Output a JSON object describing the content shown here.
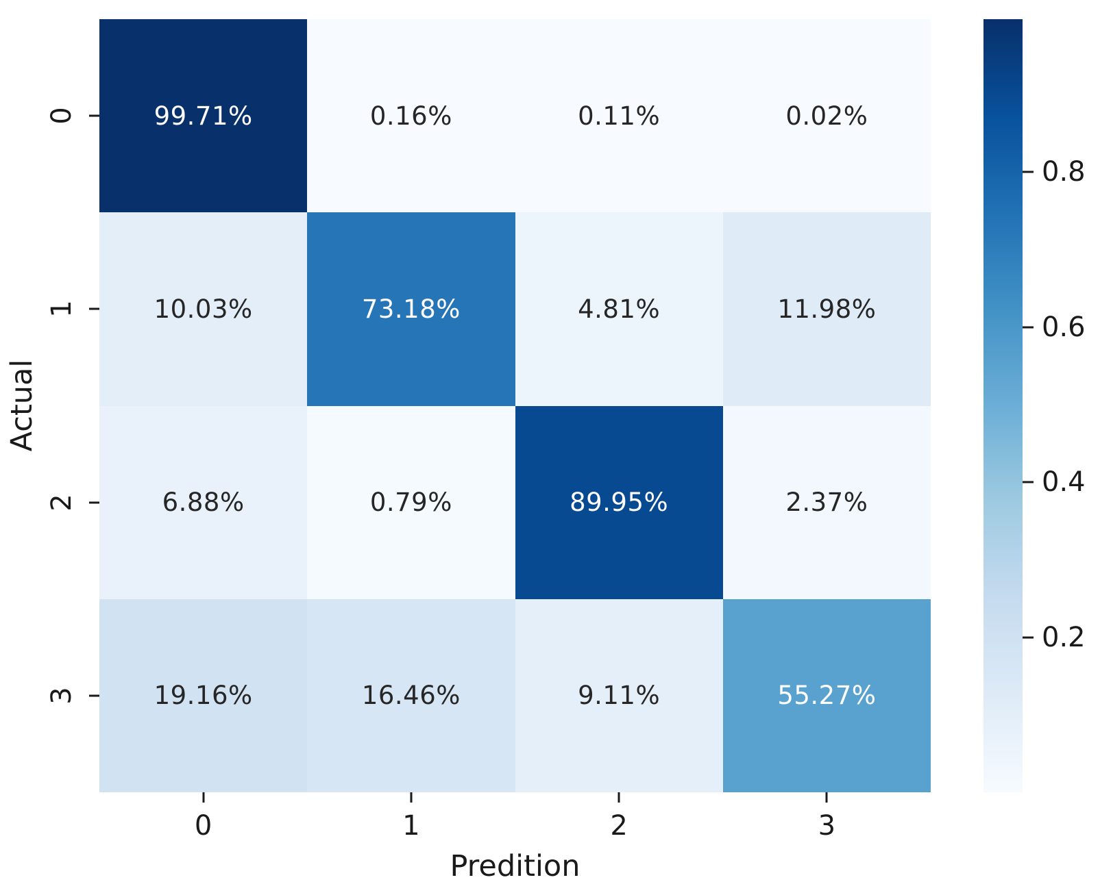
{
  "chart_data": {
    "type": "heatmap",
    "title": "",
    "xlabel": "Predition",
    "ylabel": "Actual",
    "x_categories": [
      "0",
      "1",
      "2",
      "3"
    ],
    "y_categories": [
      "0",
      "1",
      "2",
      "3"
    ],
    "cell_labels": [
      [
        "99.71%",
        "0.16%",
        "0.11%",
        "0.02%"
      ],
      [
        "10.03%",
        "73.18%",
        "4.81%",
        "11.98%"
      ],
      [
        "6.88%",
        "0.79%",
        "89.95%",
        "2.37%"
      ],
      [
        "19.16%",
        "16.46%",
        "9.11%",
        "55.27%"
      ]
    ],
    "values": [
      [
        0.9971,
        0.0016,
        0.0011,
        0.0002
      ],
      [
        0.1003,
        0.7318,
        0.0481,
        0.1198
      ],
      [
        0.0688,
        0.0079,
        0.8995,
        0.0237
      ],
      [
        0.1916,
        0.1646,
        0.0911,
        0.5527
      ]
    ],
    "vmin": 0.0002,
    "vmax": 0.9971,
    "grid": false,
    "legend_position": "right-colorbar",
    "colorbar": {
      "ticks": [
        0.8,
        0.6,
        0.4,
        0.2
      ],
      "tick_labels": [
        "0.8",
        "0.6",
        "0.4",
        "0.2"
      ]
    },
    "colormap": {
      "name": "Blues",
      "stops": [
        {
          "pos": 0.0,
          "color": "#f7fbff"
        },
        {
          "pos": 0.125,
          "color": "#deebf7"
        },
        {
          "pos": 0.25,
          "color": "#c6dbef"
        },
        {
          "pos": 0.375,
          "color": "#9ecae1"
        },
        {
          "pos": 0.5,
          "color": "#6baed6"
        },
        {
          "pos": 0.625,
          "color": "#4292c6"
        },
        {
          "pos": 0.75,
          "color": "#2171b5"
        },
        {
          "pos": 0.875,
          "color": "#08519c"
        },
        {
          "pos": 1.0,
          "color": "#08306b"
        }
      ]
    },
    "annotation_dark_color": "#262626",
    "annotation_light_color": "#ffffff",
    "axis_text_color": "#1a1a1a"
  }
}
